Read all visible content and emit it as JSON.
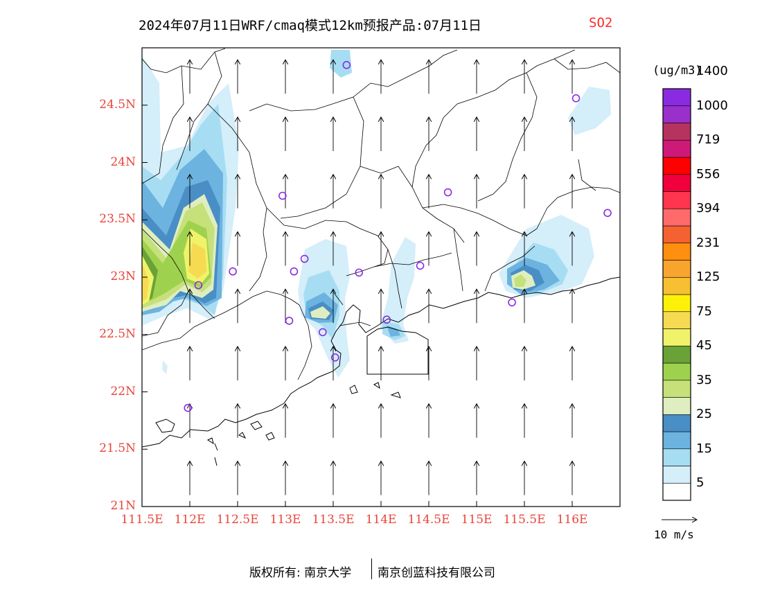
{
  "header": {
    "title": "2024年07月11日WRF/cmaq模式12km预报产品:07月11日",
    "species": "SO2"
  },
  "map": {
    "lon_range": [
      111.5,
      116.5
    ],
    "lat_range": [
      21.0,
      25.0
    ],
    "lat_ticks": [
      {
        "value": 24.5,
        "label": "24.5N"
      },
      {
        "value": 24.0,
        "label": "24N"
      },
      {
        "value": 23.5,
        "label": "23.5N"
      },
      {
        "value": 23.0,
        "label": "23N"
      },
      {
        "value": 22.5,
        "label": "22.5N"
      },
      {
        "value": 22.0,
        "label": "22N"
      },
      {
        "value": 21.5,
        "label": "21.5N"
      },
      {
        "value": 21.0,
        "label": "21N"
      }
    ],
    "lon_ticks": [
      {
        "value": 111.5,
        "label": "111.5E"
      },
      {
        "value": 112.0,
        "label": "112E"
      },
      {
        "value": 112.5,
        "label": "112.5E"
      },
      {
        "value": 113.0,
        "label": "113E"
      },
      {
        "value": 113.5,
        "label": "113.5E"
      },
      {
        "value": 114.0,
        "label": "114E"
      },
      {
        "value": 114.5,
        "label": "114.5E"
      },
      {
        "value": 115.0,
        "label": "115E"
      },
      {
        "value": 115.5,
        "label": "115.5E"
      },
      {
        "value": 116.0,
        "label": "116E"
      }
    ],
    "stations": [
      {
        "lon": 113.64,
        "lat": 24.85
      },
      {
        "lon": 116.04,
        "lat": 24.56
      },
      {
        "lon": 112.97,
        "lat": 23.71
      },
      {
        "lon": 114.7,
        "lat": 23.74
      },
      {
        "lon": 116.37,
        "lat": 23.56
      },
      {
        "lon": 112.09,
        "lat": 22.93
      },
      {
        "lon": 112.45,
        "lat": 23.05
      },
      {
        "lon": 113.09,
        "lat": 23.05
      },
      {
        "lon": 113.2,
        "lat": 23.16
      },
      {
        "lon": 113.77,
        "lat": 23.04
      },
      {
        "lon": 114.41,
        "lat": 23.1
      },
      {
        "lon": 113.04,
        "lat": 22.62
      },
      {
        "lon": 113.39,
        "lat": 22.52
      },
      {
        "lon": 114.06,
        "lat": 22.63
      },
      {
        "lon": 113.52,
        "lat": 22.3
      },
      {
        "lon": 115.37,
        "lat": 22.78
      },
      {
        "lon": 111.98,
        "lat": 21.86
      }
    ],
    "wind": {
      "lons": [
        112.0,
        112.5,
        113.0,
        113.5,
        114.0,
        114.5,
        115.0,
        115.5,
        116.0
      ],
      "lats": [
        21.1,
        21.6,
        22.1,
        22.6,
        23.1,
        23.6,
        24.1,
        24.6
      ],
      "direction": "southerly",
      "ref_label": "10 m/s"
    },
    "plumes": [
      {
        "name": "western-plume",
        "peak": 75
      },
      {
        "name": "central-plume",
        "peak": 25
      },
      {
        "name": "eastern-plume",
        "peak": 35
      },
      {
        "name": "guangzhou-plume",
        "peak": 35
      },
      {
        "name": "dongguan-plume",
        "peak": 25
      }
    ]
  },
  "colorbar": {
    "unit": "(ug/m3)",
    "colors": [
      "#ffffff",
      "#d4eefa",
      "#a7ddf3",
      "#6cb3e0",
      "#4a8ec6",
      "#dfeec0",
      "#c6e07a",
      "#9ed24e",
      "#6aa238",
      "#f0f36a",
      "#f6da51",
      "#fdf10a",
      "#f7c032",
      "#f8a530",
      "#ff8f0f",
      "#f56232",
      "#ff6a6a",
      "#ff354f",
      "#f0003c",
      "#ff0000",
      "#cf1978",
      "#b6325f",
      "#9930c9",
      "#8a2be2"
    ],
    "labels": [
      "5",
      "15",
      "25",
      "35",
      "45",
      "75",
      "125",
      "231",
      "394",
      "556",
      "719",
      "1000",
      "1400"
    ]
  },
  "credits": {
    "left": "版权所有: 南京大学",
    "right": "南京创蓝科技有限公司"
  }
}
